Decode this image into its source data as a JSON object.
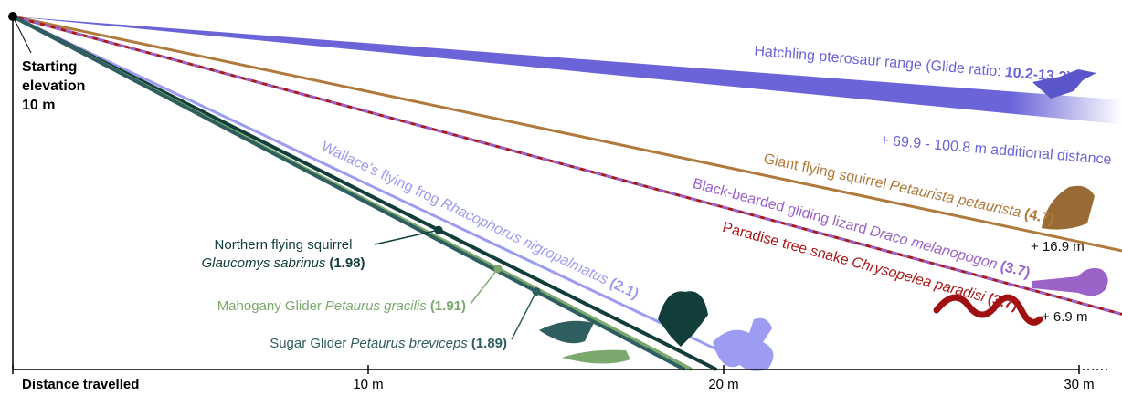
{
  "chart_data": {
    "type": "glide",
    "start_label": [
      "Starting",
      "elevation"
    ],
    "start_elevation": 10,
    "start_elevation_label": "10 m",
    "x_label": "Distance travelled",
    "xlim": [
      0,
      30
    ],
    "xticks": [
      {
        "value": 10,
        "label": "10 m"
      },
      {
        "value": 20,
        "label": "20 m"
      },
      {
        "value": 30,
        "label": "30 m"
      }
    ],
    "range_band": {
      "name": "Hatchling pterosaur range (Glide ratio:",
      "values": [
        10.2,
        13.2
      ],
      "value_label": "10.2-13.2)",
      "color": "#6a64d8",
      "extra": "+ 69.9 - 100.8 m additional distance"
    },
    "series": [
      {
        "name": "Giant flying squirrel",
        "scientific": "Petaurista petaurista",
        "glide_ratio": 4.7,
        "glide_ratio_label": "(4.7)",
        "color": "#b07a3c",
        "extra": "+ 16.9 m"
      },
      {
        "name": "Paradise tree snake",
        "scientific": "Chrysopelea paradisi",
        "glide_ratio": 3.7,
        "glide_ratio_label": "(3.7)",
        "color": "#a81919",
        "extra": "+ 6.9 m"
      },
      {
        "name": "Black-bearded gliding lizard",
        "scientific": "Draco melanopogon",
        "glide_ratio": 3.7,
        "glide_ratio_label": "(3.7)",
        "color": "#9b62c8",
        "dashed": true
      },
      {
        "name": "Wallace's flying frog",
        "scientific": "Rhacophorus nigropalmatus",
        "glide_ratio": 2.1,
        "glide_ratio_label": "(2.1)",
        "color": "#9c9cf2"
      },
      {
        "name": "Northern flying squirrel",
        "scientific": "Glaucomys sabrinus",
        "glide_ratio": 1.98,
        "glide_ratio_label": "(1.98)",
        "color": "#113d3b"
      },
      {
        "name": "Mahogany Glider",
        "scientific": "Petaurus gracilis",
        "glide_ratio": 1.91,
        "glide_ratio_label": "(1.91)",
        "color": "#7ba96d"
      },
      {
        "name": "Sugar Glider",
        "scientific": "Petaurus breviceps",
        "glide_ratio": 1.89,
        "glide_ratio_label": "(1.89)",
        "color": "#2f5e60"
      }
    ]
  }
}
